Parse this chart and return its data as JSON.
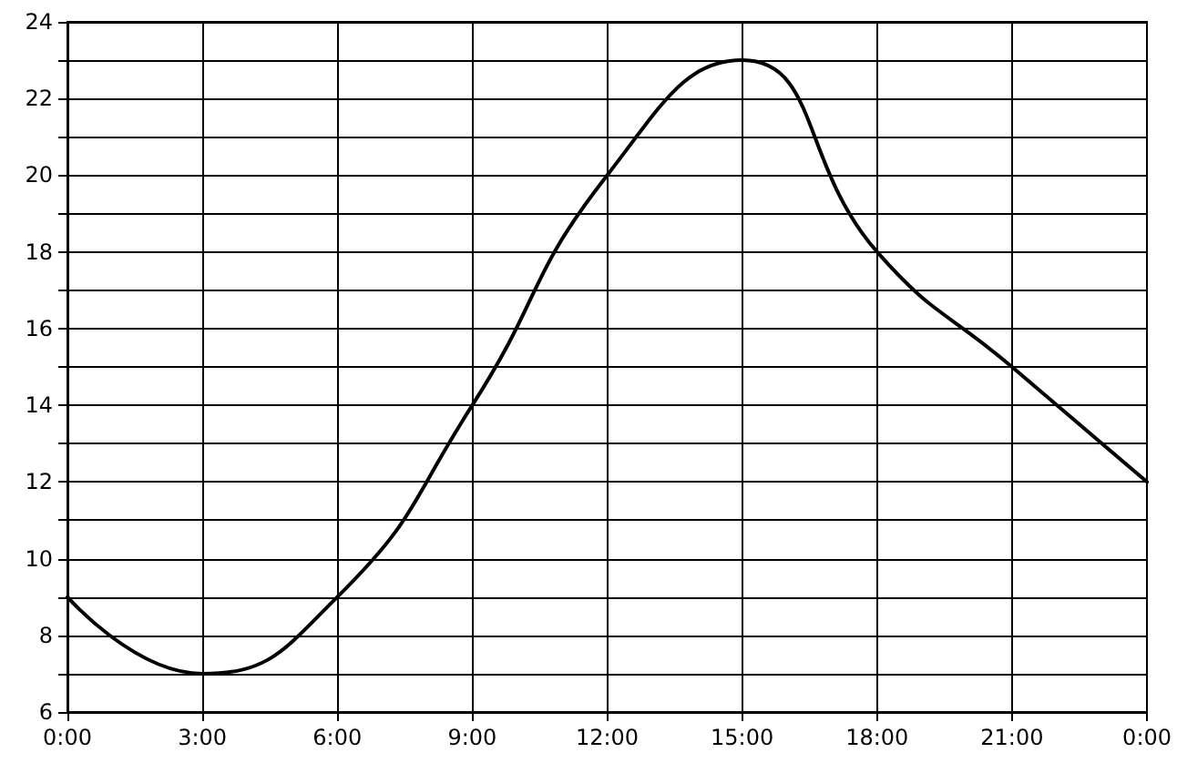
{
  "chart_data": {
    "type": "line",
    "x": [
      0,
      3,
      6,
      9,
      12,
      15,
      18,
      21,
      24
    ],
    "series": [
      {
        "color": "#000000",
        "values": [
          9,
          7,
          9,
          14,
          20,
          23,
          18,
          15,
          12
        ]
      }
    ],
    "xlim": [
      0,
      24
    ],
    "xticks": [
      {
        "value": 0,
        "label": "0:00"
      },
      {
        "value": 3,
        "label": "3:00"
      },
      {
        "value": 6,
        "label": "6:00"
      },
      {
        "value": 9,
        "label": "9:00"
      },
      {
        "value": 12,
        "label": "12:00"
      },
      {
        "value": 15,
        "label": "15:00"
      },
      {
        "value": 18,
        "label": "18:00"
      },
      {
        "value": 21,
        "label": "21:00"
      },
      {
        "value": 24,
        "label": "0:00"
      }
    ],
    "ylim": [
      6,
      24
    ],
    "yticks": [
      6,
      {
        "value": 7,
        "label": null
      },
      8,
      {
        "value": 9,
        "label": null
      },
      10,
      {
        "value": 11,
        "label": null
      },
      12,
      {
        "value": 13,
        "label": null
      },
      14,
      {
        "value": 15,
        "label": null
      },
      16,
      {
        "value": 17,
        "label": null
      },
      18,
      {
        "value": 19,
        "label": null
      },
      20,
      {
        "value": 21,
        "label": null
      },
      22,
      {
        "value": 23,
        "label": null
      },
      24
    ],
    "grid": true,
    "marker": "none",
    "line_style": "solid"
  }
}
